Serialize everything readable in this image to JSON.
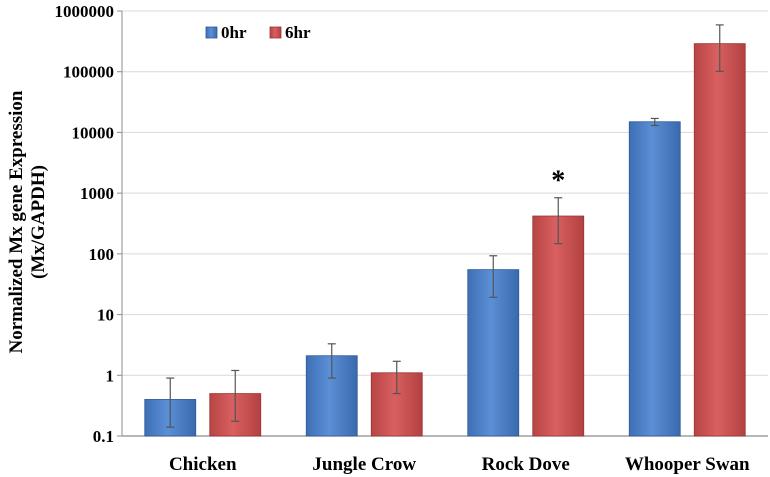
{
  "chart_data": {
    "type": "bar",
    "title": "",
    "xlabel": "",
    "ylabel": "Normalized Mx gene Expression",
    "ylabel2": "(Mx/GAPDH)",
    "yscale": "log",
    "ylim": [
      0.1,
      1000000
    ],
    "yticks": [
      "0.1",
      "1",
      "10",
      "100",
      "1000",
      "10000",
      "100000",
      "1000000"
    ],
    "grid": true,
    "legend_position": "top-left",
    "categories": [
      "Chicken",
      "Jungle Crow",
      "Rock Dove",
      "Whooper Swan"
    ],
    "series": [
      {
        "name": "0hr",
        "color": "#4f81c7",
        "values": [
          0.4,
          2.1,
          55,
          15000
        ],
        "error": [
          0.5,
          1.2,
          38,
          2000
        ]
      },
      {
        "name": "6hr",
        "color": "#cd5050",
        "values": [
          0.5,
          1.1,
          420,
          290000
        ],
        "error": [
          0.7,
          0.6,
          420,
          300000
        ]
      }
    ],
    "annotations": [
      {
        "text": "*",
        "category": "Rock Dove",
        "series": "6hr"
      }
    ]
  }
}
